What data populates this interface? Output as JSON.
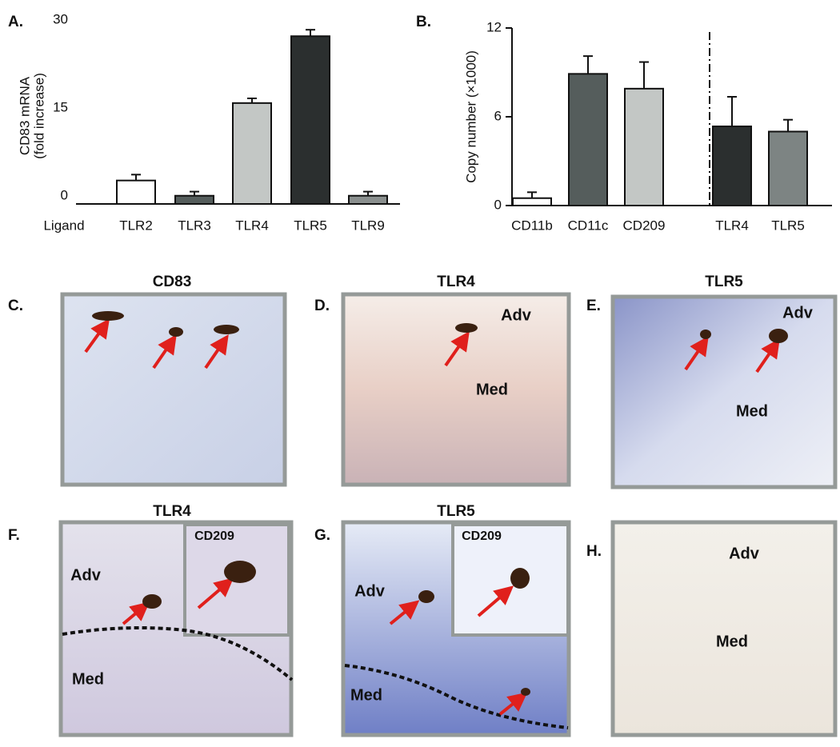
{
  "chart_data": [
    {
      "type": "bar",
      "panel_label": "A.",
      "ylabel": [
        "CD83 mRNA",
        "(fold increase)"
      ],
      "xlabel": "Ligand",
      "categories": [
        "TLR2",
        "TLR3",
        "TLR4",
        "TLR5",
        "TLR9"
      ],
      "values": [
        4,
        1.4,
        17.2,
        28.6,
        1.4
      ],
      "errors": [
        1,
        0.7,
        0.8,
        1.1,
        0.7
      ],
      "colors": [
        "#ffffff",
        "#555d5c",
        "#c3c7c5",
        "#2b2f2f",
        "#8a8f8e"
      ],
      "ylim": [
        0,
        30
      ],
      "yticks": [
        0,
        15,
        30
      ]
    },
    {
      "type": "bar",
      "panel_label": "B.",
      "ylabel": [
        "Copy number (×1000)"
      ],
      "categories": [
        "CD11b",
        "CD11c",
        "CD209",
        "TLR4",
        "TLR5"
      ],
      "values": [
        0.5,
        8.9,
        7.9,
        5.35,
        5
      ],
      "errors": [
        0.4,
        1.2,
        1.8,
        2,
        0.8
      ],
      "colors": [
        "#ffffff",
        "#555d5c",
        "#c3c7c5",
        "#2b2f2f",
        "#7d8483"
      ],
      "ylim": [
        0,
        12
      ],
      "yticks": [
        0,
        6,
        12
      ]
    }
  ],
  "panels": [
    {
      "label": "C.",
      "title": "CD83",
      "annotations": []
    },
    {
      "label": "D.",
      "title": "TLR4",
      "annotations": [
        "Adv",
        "Med"
      ]
    },
    {
      "label": "E.",
      "title": "TLR5",
      "annotations": [
        "Adv",
        "Med"
      ]
    },
    {
      "label": "F.",
      "title": "TLR4",
      "annotations": [
        "Adv",
        "Med",
        "CD209"
      ]
    },
    {
      "label": "G.",
      "title": "TLR5",
      "annotations": [
        "Adv",
        "Med",
        "CD209"
      ]
    },
    {
      "label": "H.",
      "annotations": [
        "Adv",
        "Med"
      ]
    }
  ]
}
